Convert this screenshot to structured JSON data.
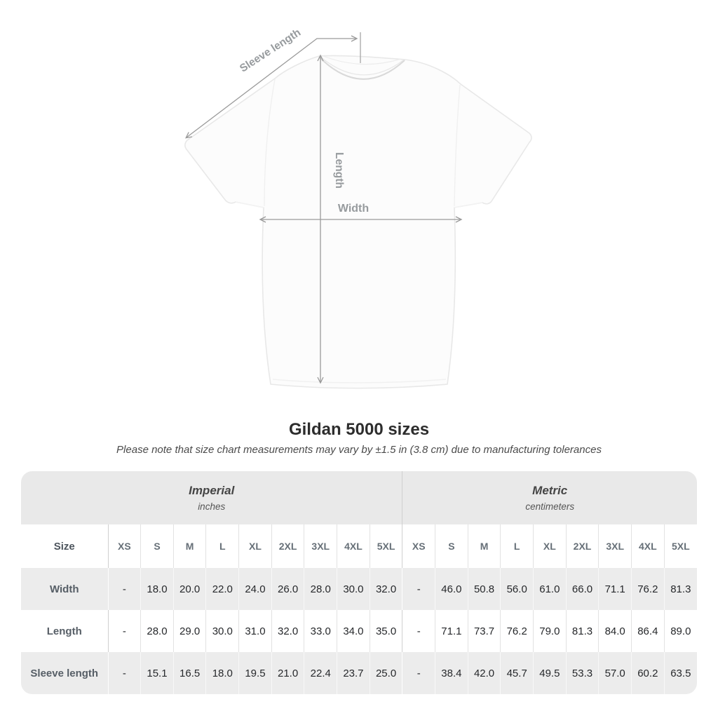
{
  "diagram": {
    "labels": {
      "sleeve_length": "Sleeve length",
      "length": "Length",
      "width": "Width"
    }
  },
  "title": "Gildan 5000 sizes",
  "subtitle": "Please note that size chart measurements may vary by ±1.5 in (3.8 cm) due to manufacturing tolerances",
  "table": {
    "groups": [
      {
        "label": "Imperial",
        "sublabel": "inches"
      },
      {
        "label": "Metric",
        "sublabel": "centimeters"
      }
    ],
    "size_header": "Size",
    "sizes": [
      "XS",
      "S",
      "M",
      "L",
      "XL",
      "2XL",
      "3XL",
      "4XL",
      "5XL"
    ],
    "rows": [
      {
        "label": "Width",
        "imperial": [
          "-",
          "18.0",
          "20.0",
          "22.0",
          "24.0",
          "26.0",
          "28.0",
          "30.0",
          "32.0"
        ],
        "metric": [
          "-",
          "46.0",
          "50.8",
          "56.0",
          "61.0",
          "66.0",
          "71.1",
          "76.2",
          "81.3"
        ]
      },
      {
        "label": "Length",
        "imperial": [
          "-",
          "28.0",
          "29.0",
          "30.0",
          "31.0",
          "32.0",
          "33.0",
          "34.0",
          "35.0"
        ],
        "metric": [
          "-",
          "71.1",
          "73.7",
          "76.2",
          "79.0",
          "81.3",
          "84.0",
          "86.4",
          "89.0"
        ]
      },
      {
        "label": "Sleeve length",
        "imperial": [
          "-",
          "15.1",
          "16.5",
          "18.0",
          "19.5",
          "21.0",
          "22.4",
          "23.7",
          "25.0"
        ],
        "metric": [
          "-",
          "38.4",
          "42.0",
          "45.7",
          "49.5",
          "53.3",
          "57.0",
          "60.2",
          "63.5"
        ]
      }
    ]
  },
  "colors": {
    "header_bg": "#e9e9e9",
    "row_alt_bg": "#ececec",
    "arrow": "#9a9a9a",
    "title_text": "#2d2d2d",
    "value_text": "#26282b",
    "label_text": "#565e66"
  }
}
